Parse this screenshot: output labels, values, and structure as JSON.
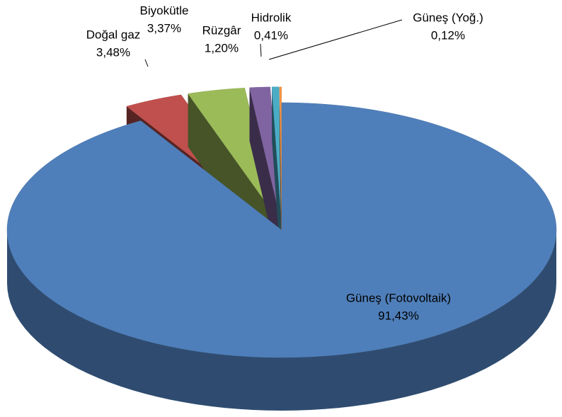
{
  "chart_data": {
    "type": "pie",
    "categories": [
      "Güneş (Fotovoltaik)",
      "Doğal gaz",
      "Biyokütle",
      "Rüzgâr",
      "Hidrolik",
      "Güneş (Yoğ.)"
    ],
    "values": [
      91.43,
      3.48,
      3.37,
      1.2,
      0.41,
      0.12
    ],
    "value_labels": [
      "91,43%",
      "3,48%",
      "3,37%",
      "1,20%",
      "0,41%",
      "0,12%"
    ],
    "colors": [
      "#4f7fba",
      "#c0504d",
      "#9bbb59",
      "#8064a2",
      "#4bacc6",
      "#f79646"
    ]
  }
}
